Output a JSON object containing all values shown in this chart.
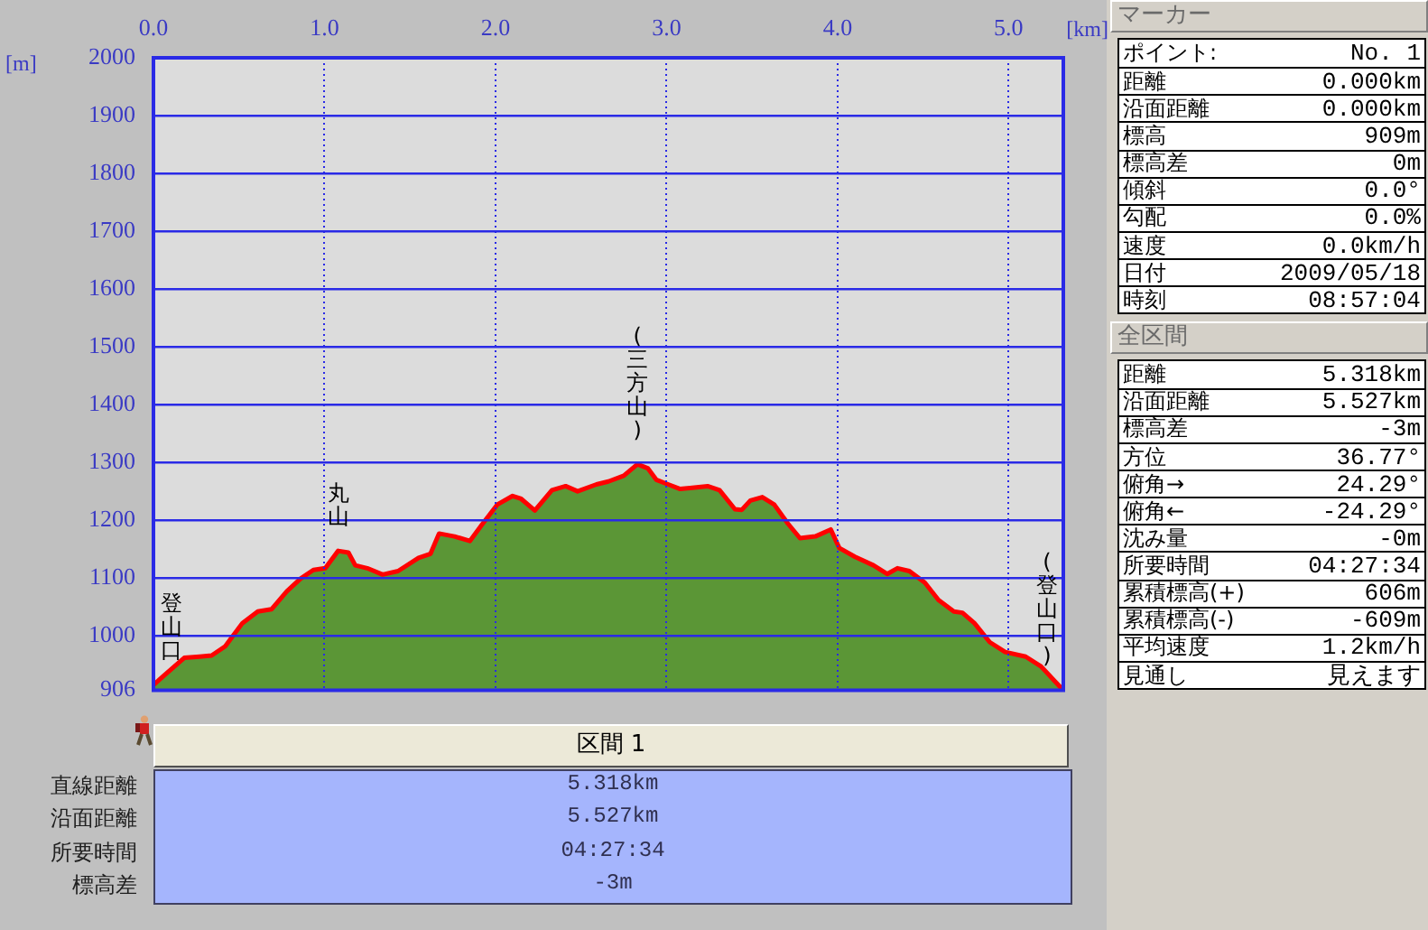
{
  "chart_data": [
    {
      "type": "area",
      "xlabel": "[km]",
      "ylabel": "[m]",
      "color": "#5b9636",
      "marker": "none",
      "grid": true,
      "xlim": [
        0,
        5.32
      ],
      "ylim": [
        906,
        2000
      ],
      "xticks": [
        {
          "value": 0,
          "label": "0.0"
        },
        {
          "value": 1,
          "label": "1.0"
        },
        {
          "value": 2,
          "label": "2.0"
        },
        {
          "value": 3,
          "label": "3.0"
        },
        {
          "value": 4,
          "label": "4.0"
        },
        {
          "value": 5,
          "label": "5.0"
        }
      ],
      "yticks": [
        906,
        1000,
        1100,
        1200,
        1300,
        1400,
        1500,
        1600,
        1700,
        1800,
        1900,
        2000
      ],
      "x": [
        0,
        0.056,
        0.18,
        0.27,
        0.34,
        0.42,
        0.52,
        0.61,
        0.69,
        0.78,
        0.86,
        0.935,
        1.005,
        1.08,
        1.14,
        1.18,
        1.25,
        1.34,
        1.43,
        1.55,
        1.62,
        1.67,
        1.76,
        1.85,
        1.92,
        2.01,
        2.1,
        2.15,
        2.23,
        2.33,
        2.41,
        2.48,
        2.59,
        2.66,
        2.75,
        2.83,
        2.89,
        2.94,
        3.01,
        3.08,
        3.15,
        3.24,
        3.31,
        3.4,
        3.44,
        3.49,
        3.56,
        3.63,
        3.71,
        3.78,
        3.87,
        3.96,
        4.01,
        4.1,
        4.21,
        4.29,
        4.35,
        4.42,
        4.51,
        4.59,
        4.68,
        4.73,
        4.8,
        4.89,
        4.98,
        5.1,
        5.19,
        5.3,
        5.318
      ],
      "values": [
        915,
        930,
        962,
        964,
        966,
        982,
        1022,
        1042,
        1046,
        1077,
        1099,
        1114,
        1117,
        1147,
        1144,
        1122,
        1117,
        1106,
        1112,
        1135,
        1142,
        1177,
        1172,
        1164,
        1192,
        1227,
        1242,
        1237,
        1217,
        1252,
        1259,
        1250,
        1262,
        1267,
        1277,
        1297,
        1290,
        1270,
        1262,
        1254,
        1256,
        1259,
        1252,
        1219,
        1218,
        1234,
        1240,
        1227,
        1194,
        1169,
        1172,
        1184,
        1152,
        1137,
        1122,
        1107,
        1117,
        1112,
        1092,
        1062,
        1042,
        1040,
        1022,
        989,
        972,
        964,
        947,
        912,
        906
      ],
      "annotations": [
        {
          "text": "登山口",
          "x": 0,
          "y": 915
        },
        {
          "text": "丸山",
          "x": 1.08,
          "y": 1147
        },
        {
          "text": "(三方山)",
          "x": 2.83,
          "y": 1297
        },
        {
          "text": "(登山口)",
          "x": 5.318,
          "y": 906
        }
      ]
    },
    {
      "type": "other",
      "title": "マーカー",
      "annotations": [
        "ポイント:",
        "No. 1",
        "距離",
        "0.000km",
        "沿面距離",
        "0.000km",
        "標高",
        "909m",
        "標高差",
        "0m",
        "傾斜",
        "0.0°",
        "勾配",
        "0.0%",
        "速度",
        "0.0km/h",
        "日付",
        "2009/05/18",
        "時刻",
        "08:57:04"
      ]
    },
    {
      "type": "other",
      "title": "全区間",
      "annotations": [
        "距離",
        "5.318km",
        "沿面距離",
        "5.527km",
        "標高差",
        "-3m",
        "方位",
        "36.77°",
        "俯角→",
        "24.29°",
        "俯角←",
        "-24.29°",
        "沈み量",
        "-0m",
        "所要時間",
        "04:27:34",
        "累積標高(+)",
        "606m",
        "累積標高(-)",
        "-609m",
        "平均速度",
        "1.2km/h",
        "見通し",
        "見えます"
      ]
    },
    {
      "type": "other",
      "title": "区間 1",
      "annotations": [
        "直線距離",
        "5.318km",
        "沿面距離",
        "5.527km",
        "所要時間",
        "04:27:34",
        "標高差",
        "-3m"
      ]
    }
  ]
}
